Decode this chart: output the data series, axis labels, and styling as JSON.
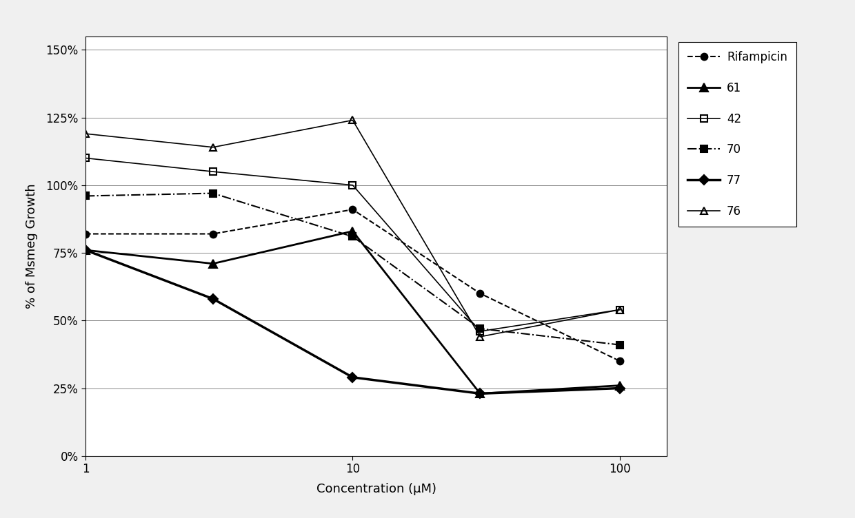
{
  "title": "",
  "xlabel": "Concentration (μM)",
  "ylabel": "% of Msmeg Growth",
  "x_values": [
    1,
    3,
    10,
    30,
    100
  ],
  "series": [
    {
      "label": "Rifampicin",
      "values": [
        0.82,
        0.82,
        0.91,
        0.6,
        0.35
      ],
      "color": "#000000",
      "linestyle": "--",
      "marker": "o",
      "markersize": 7,
      "linewidth": 1.5,
      "fillstyle": "full",
      "zorder": 5
    },
    {
      "label": "61",
      "values": [
        0.76,
        0.71,
        0.83,
        0.23,
        0.26
      ],
      "color": "#000000",
      "linestyle": "-",
      "marker": "^",
      "markersize": 8,
      "linewidth": 2.0,
      "fillstyle": "full",
      "zorder": 4
    },
    {
      "label": "42",
      "values": [
        1.1,
        1.05,
        1.0,
        0.46,
        0.54
      ],
      "color": "#000000",
      "linestyle": "-",
      "marker": "s",
      "markersize": 7,
      "linewidth": 1.2,
      "fillstyle": "none",
      "zorder": 3
    },
    {
      "label": "70",
      "values": [
        0.96,
        0.97,
        0.81,
        0.47,
        0.41
      ],
      "color": "#000000",
      "linestyle": "-.",
      "marker": "s",
      "markersize": 7,
      "linewidth": 1.5,
      "fillstyle": "full",
      "zorder": 6
    },
    {
      "label": "77",
      "values": [
        0.76,
        0.58,
        0.29,
        0.23,
        0.25
      ],
      "color": "#000000",
      "linestyle": "-",
      "marker": "D",
      "markersize": 7,
      "linewidth": 2.5,
      "fillstyle": "full",
      "zorder": 7
    },
    {
      "label": "76",
      "values": [
        1.19,
        1.14,
        1.24,
        0.44,
        0.54
      ],
      "color": "#000000",
      "linestyle": "-",
      "marker": "^",
      "markersize": 7,
      "linewidth": 1.2,
      "fillstyle": "none",
      "zorder": 2
    }
  ],
  "ylim": [
    0.0,
    1.55
  ],
  "yticks": [
    0.0,
    0.25,
    0.5,
    0.75,
    1.0,
    1.25,
    1.5
  ],
  "ytick_labels": [
    "0%",
    "25%",
    "50%",
    "75%",
    "100%",
    "125%",
    "150%"
  ],
  "xlim": [
    1,
    150
  ],
  "background_color": "#f0f0f0",
  "plot_bg": "#ffffff",
  "grid_color": "#888888",
  "legend_fontsize": 12,
  "axis_fontsize": 13,
  "tick_fontsize": 12
}
